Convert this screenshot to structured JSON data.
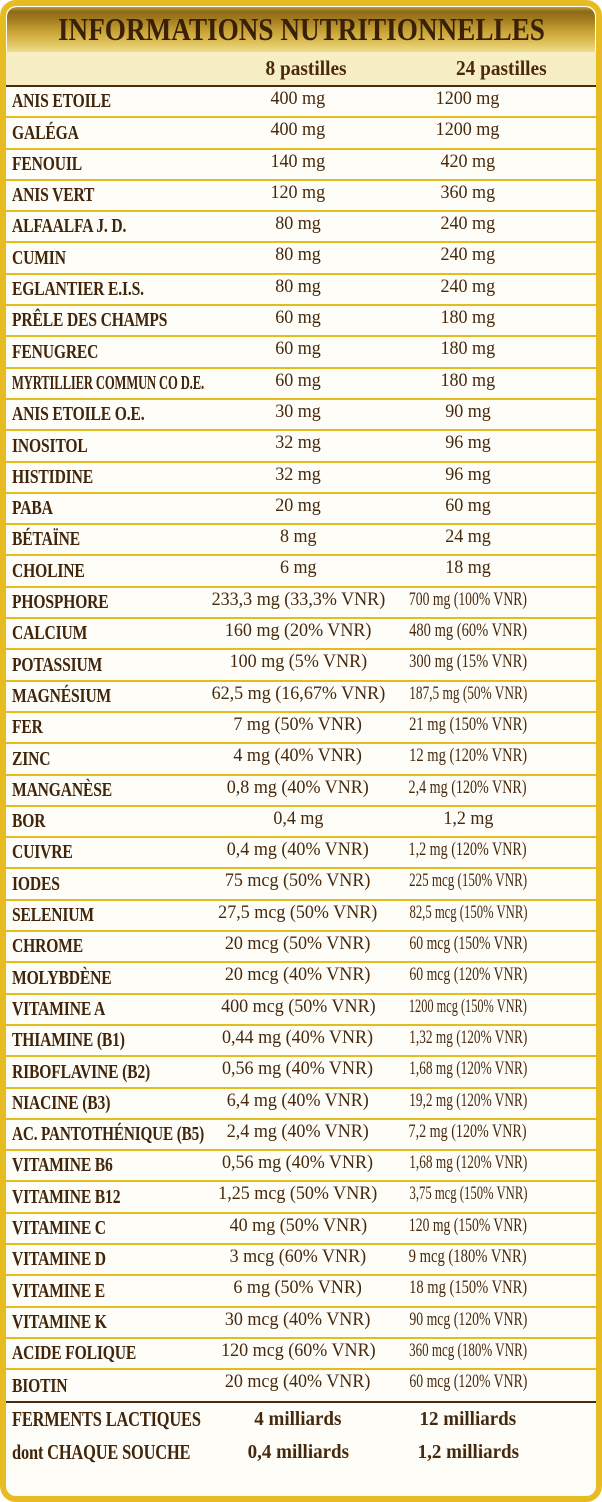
{
  "title": "INFORMATIONS NUTRITIONNELLES",
  "columns": [
    "8 pastilles",
    "24 pastilles"
  ],
  "rows": [
    {
      "name": "ANIS ETOILE",
      "v8": "400 mg",
      "v24": "1200 mg"
    },
    {
      "name": "GALÉGA",
      "v8": "400 mg",
      "v24": "1200 mg"
    },
    {
      "name": "FENOUIL",
      "v8": "140 mg",
      "v24": "420 mg"
    },
    {
      "name": "ANIS VERT",
      "v8": "120 mg",
      "v24": "360 mg"
    },
    {
      "name": "ALFAALFA J. D.",
      "v8": "80 mg",
      "v24": "240 mg"
    },
    {
      "name": "CUMIN",
      "v8": "80 mg",
      "v24": "240 mg"
    },
    {
      "name": "EGLANTIER E.I.S.",
      "v8": "80 mg",
      "v24": "240 mg"
    },
    {
      "name": "PRÊLE DES CHAMPS",
      "v8": "60 mg",
      "v24": "180 mg"
    },
    {
      "name": "FENUGREC",
      "v8": "60 mg",
      "v24": "180 mg"
    },
    {
      "name": "MYRTILLIER COMMUN CO D.E.",
      "v8": "60 mg",
      "v24": "180 mg"
    },
    {
      "name": "ANIS ETOILE O.E.",
      "v8": "30 mg",
      "v24": "90 mg"
    },
    {
      "name": "INOSITOL",
      "v8": "32 mg",
      "v24": "96 mg"
    },
    {
      "name": "HISTIDINE",
      "v8": "32 mg",
      "v24": "96 mg"
    },
    {
      "name": "PABA",
      "v8": "20 mg",
      "v24": "60 mg"
    },
    {
      "name": "BÉTAÏNE",
      "v8": "8 mg",
      "v24": "24 mg"
    },
    {
      "name": "CHOLINE",
      "v8": "6 mg",
      "v24": "18 mg"
    },
    {
      "name": "PHOSPHORE",
      "v8": "233,3 mg (33,3% VNR)",
      "v24": "700 mg (100% VNR)"
    },
    {
      "name": "CALCIUM",
      "v8": "160 mg (20% VNR)",
      "v24": "480 mg (60% VNR)"
    },
    {
      "name": "POTASSIUM",
      "v8": "100 mg (5% VNR)",
      "v24": "300 mg (15% VNR)"
    },
    {
      "name": "MAGNÉSIUM",
      "v8": "62,5 mg (16,67% VNR)",
      "v24": "187,5 mg (50% VNR)"
    },
    {
      "name": "FER",
      "v8": "7 mg (50% VNR)",
      "v24": "21 mg (150% VNR)"
    },
    {
      "name": "ZINC",
      "v8": "4 mg (40% VNR)",
      "v24": "12 mg (120% VNR)"
    },
    {
      "name": "MANGANÈSE",
      "v8": "0,8 mg (40% VNR)",
      "v24": "2,4 mg (120% VNR)"
    },
    {
      "name": "BOR",
      "v8": "0,4 mg",
      "v24": "1,2 mg"
    },
    {
      "name": "CUIVRE",
      "v8": "0,4 mg (40% VNR)",
      "v24": "1,2 mg (120% VNR)"
    },
    {
      "name": "IODES",
      "v8": "75 mcg (50% VNR)",
      "v24": "225 mcg (150% VNR)"
    },
    {
      "name": "SELENIUM",
      "v8": "27,5 mcg (50% VNR)",
      "v24": "82,5 mcg (150% VNR)"
    },
    {
      "name": "CHROME",
      "v8": "20 mcg (50% VNR)",
      "v24": "60 mcg (150% VNR)"
    },
    {
      "name": "MOLYBDÈNE",
      "v8": "20 mcg (40% VNR)",
      "v24": "60 mcg (120% VNR)"
    },
    {
      "name": "VITAMINE A",
      "v8": "400 mcg (50% VNR)",
      "v24": "1200 mcg (150% VNR)"
    },
    {
      "name": "THIAMINE (B1)",
      "v8": "0,44 mg (40% VNR)",
      "v24": "1,32 mg (120% VNR)"
    },
    {
      "name": "RIBOFLAVINE (B2)",
      "v8": "0,56 mg (40% VNR)",
      "v24": "1,68 mg (120% VNR)"
    },
    {
      "name": "NIACINE (B3)",
      "v8": "6,4 mg (40% VNR)",
      "v24": "19,2 mg (120% VNR)"
    },
    {
      "name": "AC. PANTOTHÉNIQUE (B5)",
      "v8": "2,4 mg (40% VNR)",
      "v24": "7,2 mg (120% VNR)"
    },
    {
      "name": "VITAMINE B6",
      "v8": "0,56 mg (40% VNR)",
      "v24": "1,68 mg (120% VNR)"
    },
    {
      "name": "VITAMINE B12",
      "v8": "1,25 mcg (50% VNR)",
      "v24": "3,75 mcg (150% VNR)"
    },
    {
      "name": "VITAMINE C",
      "v8": "40 mg (50% VNR)",
      "v24": "120 mg (150% VNR)"
    },
    {
      "name": "VITAMINE D",
      "v8": "3 mcg (60% VNR)",
      "v24": "9 mcg (180% VNR)"
    },
    {
      "name": "VITAMINE E",
      "v8": "6 mg (50% VNR)",
      "v24": "18 mg (150% VNR)"
    },
    {
      "name": "VITAMINE K",
      "v8": "30 mcg (40% VNR)",
      "v24": "90 mcg (120% VNR)"
    },
    {
      "name": "ACIDE FOLIQUE",
      "v8": "120 mcg (60% VNR)",
      "v24": "360 mcg (180% VNR)"
    },
    {
      "name": "BIOTIN",
      "v8": "20 mcg (40% VNR)",
      "v24": "60 mcg (120% VNR)"
    }
  ],
  "footer_rows": [
    {
      "name": "FERMENTS LACTIQUES",
      "v8": "4 milliards",
      "v24": "12 milliards"
    },
    {
      "name": "dont CHAQUE SOUCHE",
      "v8": "0,4 milliards",
      "v24": "1,2 milliards"
    }
  ],
  "colors": {
    "border_gold": "#e7bb22",
    "separator_gold": "#e3bd1d",
    "separator_dark": "#4a2c10",
    "band_gold_dark": "#8c6a18",
    "band_gold_light": "#eedd8d",
    "header_cream": "#f8eec6",
    "text_brown": "#40250b",
    "row_bg": "#fefdf7"
  }
}
